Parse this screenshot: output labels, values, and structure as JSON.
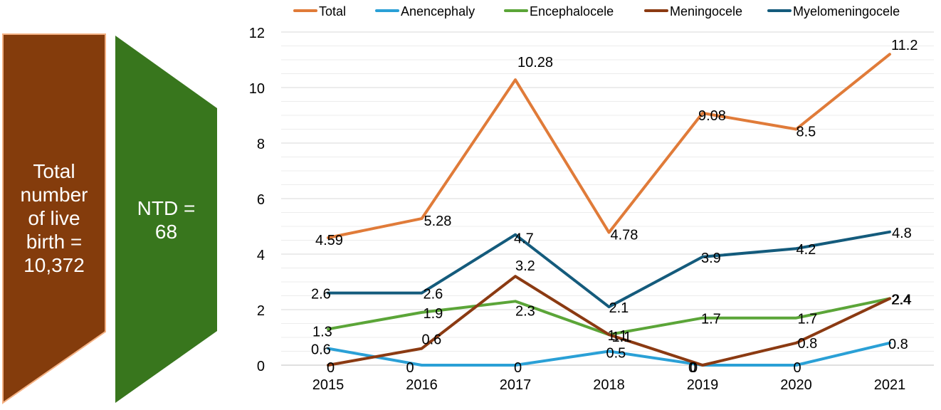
{
  "infographic": {
    "live_births_label": [
      "Total",
      "number",
      "of live",
      "birth =",
      "10,372"
    ],
    "ntd_label": [
      "NTD =",
      "68"
    ],
    "live_births_color": "#843C0C",
    "ntd_color": "#38761D"
  },
  "chart_data": {
    "type": "line",
    "title": "",
    "xlabel": "",
    "ylabel": "",
    "categories": [
      "2015",
      "2016",
      "2017",
      "2018",
      "2019",
      "2020",
      "2021"
    ],
    "ylim": [
      0,
      12
    ],
    "yticks": [
      0,
      2,
      4,
      6,
      8,
      10,
      12
    ],
    "grid": true,
    "legend_position": "top",
    "series": [
      {
        "name": "Total",
        "color": "#E07B39",
        "values": [
          4.59,
          5.28,
          10.28,
          4.78,
          9.08,
          8.5,
          11.2
        ],
        "labels": [
          "4.59",
          "5.28",
          "10.28",
          "4.78",
          "9.08",
          "8.5",
          "11.2"
        ]
      },
      {
        "name": "Anencephaly",
        "color": "#2AA0D6",
        "values": [
          0.6,
          0,
          0,
          0.5,
          0,
          0,
          0.8
        ],
        "labels": [
          "0.6",
          "0",
          "0",
          "0.5",
          "0",
          "0",
          "0.8"
        ]
      },
      {
        "name": "Encephalocele",
        "color": "#5BA538",
        "values": [
          1.3,
          1.9,
          2.3,
          1.1,
          1.7,
          1.7,
          2.4
        ],
        "labels": [
          "1.3",
          "1.9",
          "2.3",
          "1.1",
          "1.7",
          "1.7",
          "2.4"
        ]
      },
      {
        "name": "Meningocele",
        "color": "#8B3A12",
        "values": [
          0,
          0.6,
          3.2,
          1.1,
          0,
          0.8,
          2.4
        ],
        "labels": [
          "0",
          "0.6",
          "3.2",
          "1.1",
          "0",
          "0.8",
          "2.4"
        ]
      },
      {
        "name": "Myelomeningocele",
        "color": "#145B7C",
        "values": [
          2.6,
          2.6,
          4.7,
          2.1,
          3.9,
          4.2,
          4.8
        ],
        "labels": [
          "2.6",
          "2.6",
          "4.7",
          "2.1",
          "3.9",
          "4.2",
          "4.8"
        ]
      }
    ]
  }
}
